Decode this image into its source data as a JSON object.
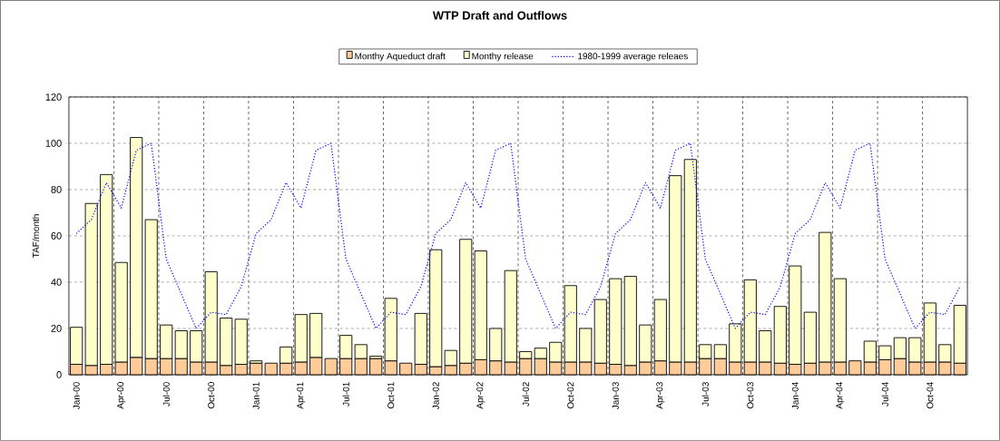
{
  "chart_data": {
    "type": "bar",
    "title": "WTP Draft and Outflows",
    "ylabel": "TAF/month",
    "categories": [
      "Jan-00",
      null,
      null,
      "Apr-00",
      null,
      null,
      "Jul-00",
      null,
      null,
      "Oct-00",
      null,
      null,
      "Jan-01",
      null,
      null,
      "Apr-01",
      null,
      null,
      "Jul-01",
      null,
      null,
      "Oct-01",
      null,
      null,
      "Jan-02",
      null,
      null,
      "Apr-02",
      null,
      null,
      "Jul-02",
      null,
      null,
      "Oct-02",
      null,
      null,
      "Jan-03",
      null,
      null,
      "Apr-03",
      null,
      null,
      "Jul-03",
      null,
      null,
      "Oct-03",
      null,
      null,
      "Jan-04",
      null,
      null,
      "Apr-04",
      null,
      null,
      "Jul-04",
      null,
      null,
      "Oct-04",
      null,
      null
    ],
    "stacked": true,
    "ylim": [
      0,
      120
    ],
    "yticks": [
      0,
      20,
      40,
      60,
      80,
      100,
      120
    ],
    "grid": true,
    "legend": "top",
    "series": [
      {
        "name": "Monthy Aqueduct draft",
        "color": "#ffcc99",
        "values": [
          4.5,
          4,
          4.5,
          5.5,
          7.5,
          7,
          7,
          7,
          5.5,
          5.5,
          4,
          4.5,
          5,
          5,
          5,
          5.5,
          7.5,
          7,
          7,
          7,
          7,
          6,
          5,
          4.5,
          3.5,
          4,
          5,
          6.5,
          6,
          5.5,
          7,
          7,
          5.5,
          5.5,
          5.5,
          5,
          4.5,
          4,
          5.5,
          6,
          5.5,
          5.5,
          7,
          7,
          5.5,
          5.5,
          5.5,
          5,
          4.5,
          5,
          5.5,
          5.5,
          6,
          5.5,
          6.5,
          7,
          5.5,
          5.5,
          5.5,
          5
        ]
      },
      {
        "name": "Monthy release",
        "color": "#ffffcc",
        "values": [
          16,
          70,
          82,
          43,
          95,
          60,
          14.5,
          12,
          13.5,
          39,
          20.5,
          19.5,
          1,
          0,
          7,
          20.5,
          19,
          0,
          10,
          6,
          1,
          27,
          0,
          22,
          50.5,
          6.5,
          53.5,
          47,
          14,
          39.5,
          3,
          4.5,
          8.5,
          33,
          14.5,
          27.5,
          37,
          38.5,
          16,
          26.5,
          80.5,
          87.5,
          6,
          6,
          16.5,
          35.5,
          13.5,
          24.5,
          42.5,
          22,
          56,
          36,
          0,
          9,
          6,
          9,
          10.5,
          25.5,
          7.5,
          25
        ]
      },
      {
        "name": "1980-1999 average releaes",
        "type": "line",
        "color": "#0000ff",
        "line_style": "dotted",
        "marker": "none",
        "values": [
          61,
          67,
          83,
          72,
          97,
          100,
          50,
          35,
          20,
          27,
          26,
          38,
          61,
          67,
          83,
          72,
          97,
          100,
          50,
          35,
          20,
          27,
          26,
          38,
          61,
          67,
          83,
          72,
          97,
          100,
          50,
          35,
          20,
          27,
          26,
          38,
          61,
          67,
          83,
          72,
          97,
          100,
          50,
          35,
          20,
          27,
          26,
          38,
          61,
          67,
          83,
          72,
          97,
          100,
          50,
          35,
          20,
          27,
          26,
          38
        ]
      }
    ]
  }
}
